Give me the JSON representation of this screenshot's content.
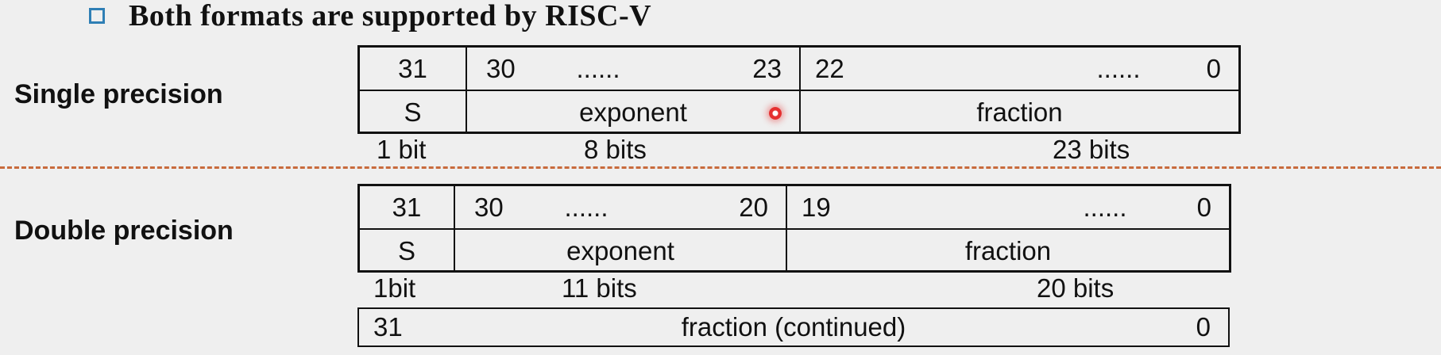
{
  "heading": "Both formats are supported by RISC-V",
  "single": {
    "label": "Single precision",
    "bits": {
      "s": "31",
      "exp_hi": "30",
      "exp_dots": "......",
      "exp_lo": "23",
      "frac_hi": "22",
      "frac_dots": "......",
      "frac_lo": "0"
    },
    "fields": {
      "sign": "S",
      "exponent": "exponent",
      "fraction": "fraction"
    },
    "widths": {
      "sign": "1 bit",
      "exponent": "8 bits",
      "fraction": "23 bits"
    }
  },
  "double": {
    "label": "Double precision",
    "bits": {
      "s": "31",
      "exp_hi": "30",
      "exp_dots": "......",
      "exp_lo": "20",
      "frac_hi": "19",
      "frac_dots": "......",
      "frac_lo": "0"
    },
    "fields": {
      "sign": "S",
      "exponent": "exponent",
      "fraction": "fraction"
    },
    "widths": {
      "sign": "1bit",
      "exponent": "11 bits",
      "fraction": "20 bits"
    },
    "continued": {
      "hi": "31",
      "text": "fraction (continued)",
      "lo": "0"
    }
  },
  "colors": {
    "bullet": "#2f7fb5",
    "divider": "#c86a3c",
    "cursor": "#e53030"
  }
}
